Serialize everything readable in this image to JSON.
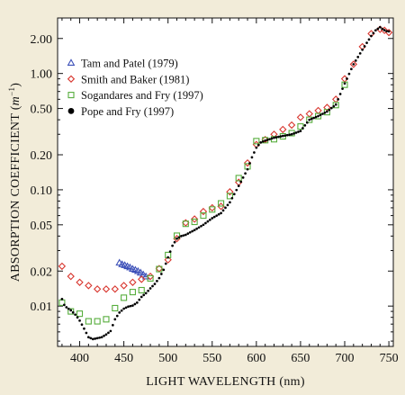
{
  "chart_data": {
    "type": "scatter",
    "title": "",
    "xlabel": "LIGHT WAVELENGTH (nm)",
    "ylabel_prefix": "ABSORPTION COEFFICIENT (",
    "ylabel_unit_base": "m",
    "ylabel_unit_exp": "−1",
    "ylabel_suffix": ")",
    "xlim": [
      375,
      755
    ],
    "ylim": [
      0.0045,
      3.0
    ],
    "yscale": "log",
    "grid": false,
    "legend_position": "top-left",
    "x_ticks": [
      {
        "value": 400,
        "label": "400"
      },
      {
        "value": 450,
        "label": "450"
      },
      {
        "value": 500,
        "label": "500"
      },
      {
        "value": 550,
        "label": "550"
      },
      {
        "value": 600,
        "label": "600"
      },
      {
        "value": 650,
        "label": "650"
      },
      {
        "value": 700,
        "label": "700"
      },
      {
        "value": 750,
        "label": "750"
      }
    ],
    "y_ticks": [
      {
        "value": 0.01,
        "label": "0.01"
      },
      {
        "value": 0.02,
        "label": "0.02"
      },
      {
        "value": 0.05,
        "label": "0.05"
      },
      {
        "value": 0.1,
        "label": "0.10"
      },
      {
        "value": 0.2,
        "label": "0.20"
      },
      {
        "value": 0.5,
        "label": "0.50"
      },
      {
        "value": 1.0,
        "label": "1.00"
      },
      {
        "value": 2.0,
        "label": "2.00"
      }
    ],
    "series": [
      {
        "name": "Tam and Patel (1979)",
        "marker": "triangle",
        "color": "#3b4fb8",
        "points": [
          [
            445,
            0.0235
          ],
          [
            448,
            0.0228
          ],
          [
            451,
            0.0224
          ],
          [
            454,
            0.0219
          ],
          [
            457,
            0.0214
          ],
          [
            460,
            0.0208
          ],
          [
            463,
            0.0204
          ],
          [
            466,
            0.0199
          ],
          [
            469,
            0.0193
          ],
          [
            472,
            0.0186
          ],
          [
            475,
            0.0179
          ]
        ]
      },
      {
        "name": "Smith and Baker (1981)",
        "marker": "diamond",
        "color": "#d8362e",
        "points": [
          [
            380,
            0.022
          ],
          [
            390,
            0.018
          ],
          [
            400,
            0.016
          ],
          [
            410,
            0.015
          ],
          [
            420,
            0.014
          ],
          [
            430,
            0.014
          ],
          [
            440,
            0.014
          ],
          [
            450,
            0.015
          ],
          [
            460,
            0.016
          ],
          [
            470,
            0.017
          ],
          [
            480,
            0.018
          ],
          [
            490,
            0.021
          ],
          [
            500,
            0.025
          ],
          [
            510,
            0.038
          ],
          [
            520,
            0.052
          ],
          [
            530,
            0.056
          ],
          [
            540,
            0.065
          ],
          [
            550,
            0.07
          ],
          [
            560,
            0.072
          ],
          [
            570,
            0.096
          ],
          [
            580,
            0.116
          ],
          [
            590,
            0.17
          ],
          [
            600,
            0.245
          ],
          [
            610,
            0.27
          ],
          [
            620,
            0.3
          ],
          [
            630,
            0.33
          ],
          [
            640,
            0.36
          ],
          [
            650,
            0.42
          ],
          [
            660,
            0.45
          ],
          [
            670,
            0.48
          ],
          [
            680,
            0.51
          ],
          [
            690,
            0.6
          ],
          [
            700,
            0.9
          ],
          [
            710,
            1.2
          ],
          [
            720,
            1.7
          ],
          [
            730,
            2.2
          ],
          [
            740,
            2.4
          ],
          [
            745,
            2.35
          ],
          [
            750,
            2.25
          ]
        ]
      },
      {
        "name": "Sogandares and Fry (1997)",
        "marker": "square",
        "color": "#56ad3c",
        "points": [
          [
            380,
            0.0107
          ],
          [
            390,
            0.009
          ],
          [
            400,
            0.0086
          ],
          [
            410,
            0.0074
          ],
          [
            420,
            0.0074
          ],
          [
            430,
            0.0077
          ],
          [
            440,
            0.0096
          ],
          [
            450,
            0.0118
          ],
          [
            460,
            0.0132
          ],
          [
            470,
            0.0137
          ],
          [
            480,
            0.0173
          ],
          [
            490,
            0.0208
          ],
          [
            500,
            0.0275
          ],
          [
            510,
            0.0403
          ],
          [
            520,
            0.051
          ],
          [
            530,
            0.053
          ],
          [
            540,
            0.06
          ],
          [
            550,
            0.0677
          ],
          [
            560,
            0.0764
          ],
          [
            570,
            0.0883
          ],
          [
            580,
            0.126
          ],
          [
            590,
            0.159
          ],
          [
            600,
            0.262
          ],
          [
            610,
            0.267
          ],
          [
            620,
            0.272
          ],
          [
            630,
            0.288
          ],
          [
            640,
            0.307
          ],
          [
            650,
            0.35
          ],
          [
            660,
            0.4
          ],
          [
            670,
            0.43
          ],
          [
            680,
            0.465
          ],
          [
            690,
            0.535
          ],
          [
            700,
            0.8
          ]
        ]
      },
      {
        "name": "Pope and Fry (1997)",
        "marker": "dot",
        "color": "#000000",
        "step": 2.5,
        "knots": [
          [
            380,
            0.0115
          ],
          [
            383,
            0.01
          ],
          [
            390,
            0.0092
          ],
          [
            396,
            0.0083
          ],
          [
            400,
            0.0075
          ],
          [
            405,
            0.0064
          ],
          [
            410,
            0.0054
          ],
          [
            415,
            0.0052
          ],
          [
            420,
            0.0053
          ],
          [
            425,
            0.0054
          ],
          [
            430,
            0.0057
          ],
          [
            435,
            0.0061
          ],
          [
            440,
            0.0077
          ],
          [
            445,
            0.0088
          ],
          [
            450,
            0.0095
          ],
          [
            455,
            0.0099
          ],
          [
            460,
            0.0101
          ],
          [
            465,
            0.0107
          ],
          [
            470,
            0.012
          ],
          [
            475,
            0.0129
          ],
          [
            480,
            0.0142
          ],
          [
            485,
            0.0155
          ],
          [
            490,
            0.0174
          ],
          [
            495,
            0.0205
          ],
          [
            500,
            0.0262
          ],
          [
            505,
            0.033
          ],
          [
            510,
            0.038
          ],
          [
            515,
            0.04
          ],
          [
            520,
            0.041
          ],
          [
            525,
            0.043
          ],
          [
            530,
            0.045
          ],
          [
            540,
            0.05
          ],
          [
            550,
            0.057
          ],
          [
            560,
            0.063
          ],
          [
            570,
            0.078
          ],
          [
            580,
            0.108
          ],
          [
            590,
            0.15
          ],
          [
            595,
            0.19
          ],
          [
            600,
            0.23
          ],
          [
            605,
            0.255
          ],
          [
            610,
            0.265
          ],
          [
            620,
            0.28
          ],
          [
            630,
            0.29
          ],
          [
            640,
            0.3
          ],
          [
            650,
            0.32
          ],
          [
            660,
            0.4
          ],
          [
            670,
            0.43
          ],
          [
            680,
            0.47
          ],
          [
            690,
            0.54
          ],
          [
            700,
            0.82
          ],
          [
            710,
            1.2
          ],
          [
            720,
            1.6
          ],
          [
            730,
            2.1
          ],
          [
            735,
            2.35
          ],
          [
            740,
            2.5
          ],
          [
            743,
            2.4
          ],
          [
            748,
            2.3
          ],
          [
            752,
            2.3
          ]
        ]
      }
    ]
  }
}
